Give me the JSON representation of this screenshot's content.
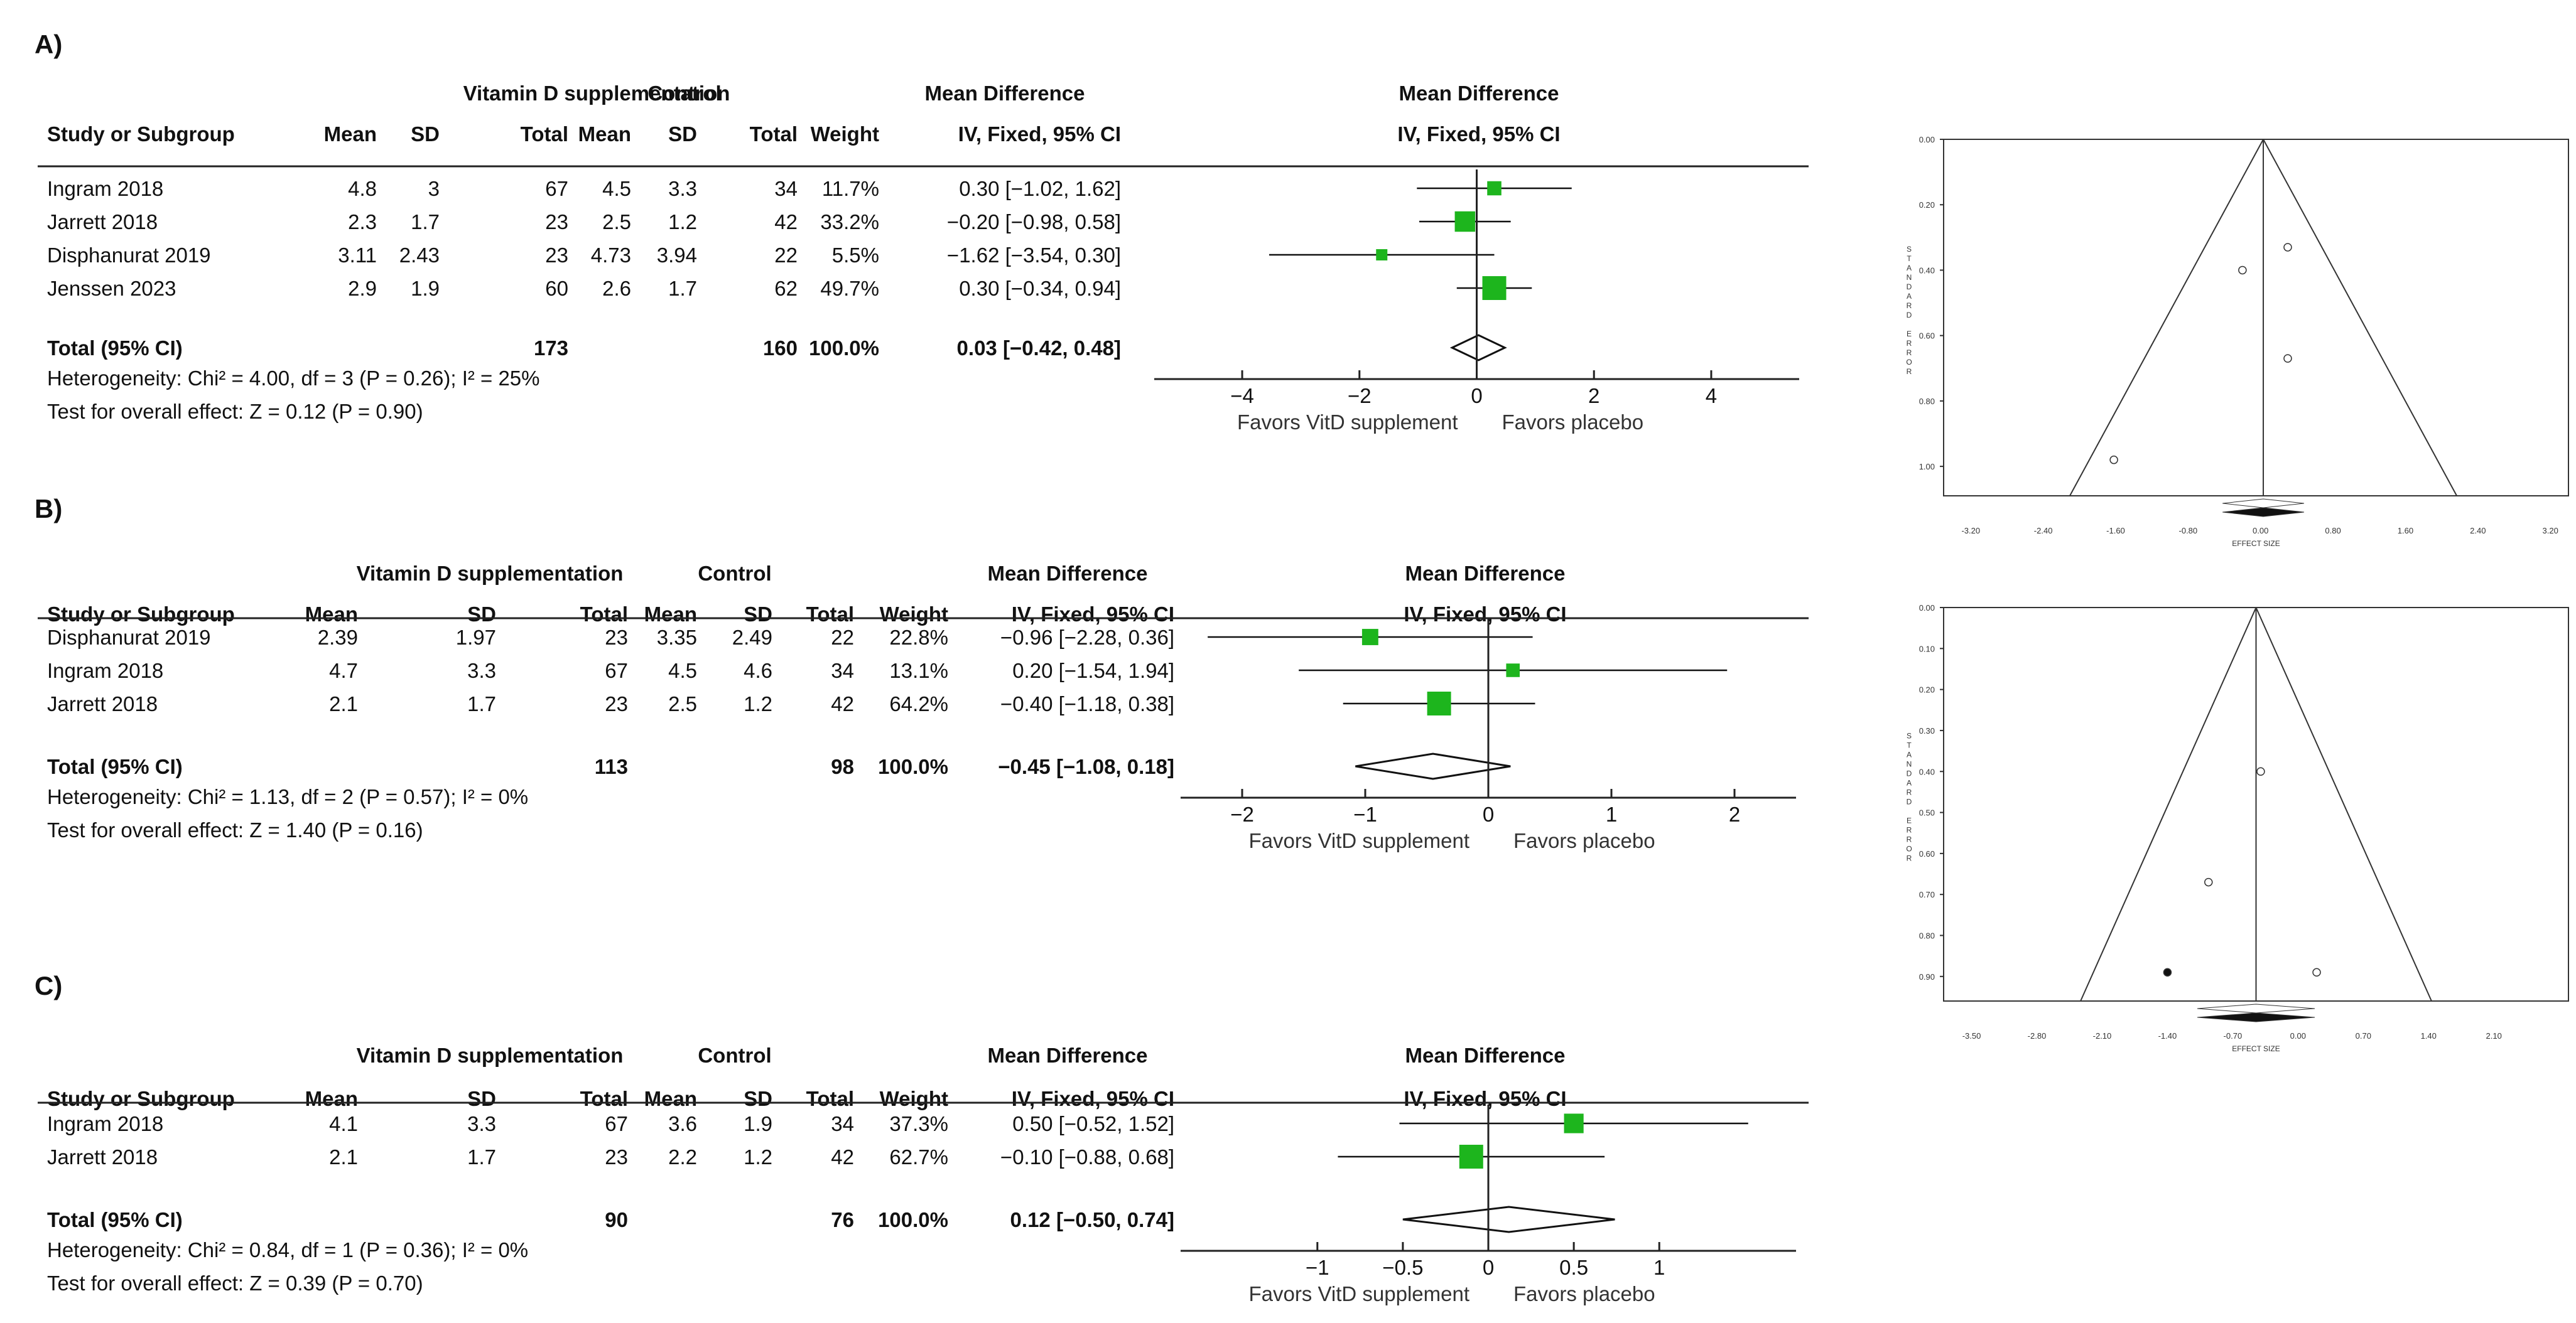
{
  "chart_data": [
    {
      "type": "forest",
      "panel": "A)",
      "group_headers": {
        "treatment": "Vitamin D supplementation",
        "control": "Control",
        "effect": "Mean Difference",
        "plot": "Mean Difference"
      },
      "column_headers": [
        "Study or Subgroup",
        "Mean",
        "SD",
        "Total",
        "Mean",
        "SD",
        "Total",
        "Weight",
        "IV, Fixed, 95% CI",
        "IV, Fixed, 95% CI"
      ],
      "studies": [
        {
          "study": "Ingram 2018",
          "t_mean": "4.8",
          "t_sd": "3",
          "t_total": "67",
          "c_mean": "4.5",
          "c_sd": "3.3",
          "c_total": "34",
          "weight": "11.7%",
          "ci_text": "0.30 [-1.02, 1.62]",
          "md": 0.3,
          "lo": -1.02,
          "hi": 1.62,
          "w": 11.7
        },
        {
          "study": "Jarrett 2018",
          "t_mean": "2.3",
          "t_sd": "1.7",
          "t_total": "23",
          "c_mean": "2.5",
          "c_sd": "1.2",
          "c_total": "42",
          "weight": "33.2%",
          "ci_text": "-0.20 [-0.98, 0.58]",
          "md": -0.2,
          "lo": -0.98,
          "hi": 0.58,
          "w": 33.2
        },
        {
          "study": "Disphanurat 2019",
          "t_mean": "3.11",
          "t_sd": "2.43",
          "t_total": "23",
          "c_mean": "4.73",
          "c_sd": "3.94",
          "c_total": "22",
          "weight": "5.5%",
          "ci_text": "-1.62 [-3.54, 0.30]",
          "md": -1.62,
          "lo": -3.54,
          "hi": 0.3,
          "w": 5.5
        },
        {
          "study": "Jenssen 2023",
          "t_mean": "2.9",
          "t_sd": "1.9",
          "t_total": "60",
          "c_mean": "2.6",
          "c_sd": "1.7",
          "c_total": "62",
          "weight": "49.7%",
          "ci_text": "0.30 [-0.34, 0.94]",
          "md": 0.3,
          "lo": -0.34,
          "hi": 0.94,
          "w": 49.7
        }
      ],
      "total": {
        "label": "Total (95% CI)",
        "t_total": "173",
        "c_total": "160",
        "weight": "100.0%",
        "ci_text": "0.03 [-0.42, 0.48]",
        "md": 0.03,
        "lo": -0.42,
        "hi": 0.48
      },
      "heterogeneity": "Heterogeneity: Chi² = 4.00, df = 3 (P = 0.26); I² = 25%",
      "overall_effect": "Test for overall effect: Z = 0.12 (P = 0.90)",
      "x_ticks": [
        -4,
        -2,
        0,
        2,
        4
      ],
      "x_tick_labels": [
        "-4",
        "-2",
        "0",
        "2",
        "4"
      ],
      "xlim": [
        -5.5,
        5.5
      ],
      "favors_left": "Favors VitD supplement",
      "favors_right": "Favors placebo"
    },
    {
      "type": "forest",
      "panel": "B)",
      "group_headers": {
        "treatment": "Vitamin D supplementation",
        "control": "Control",
        "effect": "Mean Difference",
        "plot": "Mean Difference"
      },
      "column_headers": [
        "Study or Subgroup",
        "Mean",
        "SD",
        "Total",
        "Mean",
        "SD",
        "Total",
        "Weight",
        "IV, Fixed, 95% CI",
        "IV, Fixed, 95% CI"
      ],
      "studies": [
        {
          "study": "Disphanurat 2019",
          "t_mean": "2.39",
          "t_sd": "1.97",
          "t_total": "23",
          "c_mean": "3.35",
          "c_sd": "2.49",
          "c_total": "22",
          "weight": "22.8%",
          "ci_text": "-0.96 [-2.28, 0.36]",
          "md": -0.96,
          "lo": -2.28,
          "hi": 0.36,
          "w": 22.8
        },
        {
          "study": "Ingram 2018",
          "t_mean": "4.7",
          "t_sd": "3.3",
          "t_total": "67",
          "c_mean": "4.5",
          "c_sd": "4.6",
          "c_total": "34",
          "weight": "13.1%",
          "ci_text": "0.20 [-1.54, 1.94]",
          "md": 0.2,
          "lo": -1.54,
          "hi": 1.94,
          "w": 13.1
        },
        {
          "study": "Jarrett 2018",
          "t_mean": "2.1",
          "t_sd": "1.7",
          "t_total": "23",
          "c_mean": "2.5",
          "c_sd": "1.2",
          "c_total": "42",
          "weight": "64.2%",
          "ci_text": "-0.40 [-1.18, 0.38]",
          "md": -0.4,
          "lo": -1.18,
          "hi": 0.38,
          "w": 64.2
        }
      ],
      "total": {
        "label": "Total (95% CI)",
        "t_total": "113",
        "c_total": "98",
        "weight": "100.0%",
        "ci_text": "-0.45 [-1.08, 0.18]",
        "md": -0.45,
        "lo": -1.08,
        "hi": 0.18
      },
      "heterogeneity": "Heterogeneity: Chi² = 1.13, df = 2 (P = 0.57); I² = 0%",
      "overall_effect": "Test for overall effect: Z = 1.40 (P = 0.16)",
      "x_ticks": [
        -2,
        -1,
        0,
        1,
        2
      ],
      "x_tick_labels": [
        "-2",
        "-1",
        "0",
        "1",
        "2"
      ],
      "xlim": [
        -2.5,
        2.5
      ],
      "favors_left": "Favors VitD supplement",
      "favors_right": "Favors placebo"
    },
    {
      "type": "forest",
      "panel": "C)",
      "group_headers": {
        "treatment": "Vitamin D supplementation",
        "control": "Control",
        "effect": "Mean Difference",
        "plot": "Mean Difference"
      },
      "column_headers": [
        "Study or Subgroup",
        "Mean",
        "SD",
        "Total",
        "Mean",
        "SD",
        "Total",
        "Weight",
        "IV, Fixed, 95% CI",
        "IV, Fixed, 95% CI"
      ],
      "studies": [
        {
          "study": "Ingram 2018",
          "t_mean": "4.1",
          "t_sd": "3.3",
          "t_total": "67",
          "c_mean": "3.6",
          "c_sd": "1.9",
          "c_total": "34",
          "weight": "37.3%",
          "ci_text": "0.50 [-0.52, 1.52]",
          "md": 0.5,
          "lo": -0.52,
          "hi": 1.52,
          "w": 37.3
        },
        {
          "study": "Jarrett 2018",
          "t_mean": "2.1",
          "t_sd": "1.7",
          "t_total": "23",
          "c_mean": "2.2",
          "c_sd": "1.2",
          "c_total": "42",
          "weight": "62.7%",
          "ci_text": "-0.10 [-0.88, 0.68]",
          "md": -0.1,
          "lo": -0.88,
          "hi": 0.68,
          "w": 62.7
        }
      ],
      "total": {
        "label": "Total (95% CI)",
        "t_total": "90",
        "c_total": "76",
        "weight": "100.0%",
        "ci_text": "0.12 [-0.50, 0.74]",
        "md": 0.12,
        "lo": -0.5,
        "hi": 0.74
      },
      "heterogeneity": "Heterogeneity: Chi² = 0.84, df = 1 (P = 0.36); I² = 0%",
      "overall_effect": "Test for overall effect: Z = 0.39 (P = 0.70)",
      "x_ticks": [
        -1,
        -0.5,
        0,
        0.5,
        1
      ],
      "x_tick_labels": [
        "-1",
        "-0.5",
        "0",
        "0.5",
        "1"
      ],
      "xlim": [
        -1.8,
        1.8
      ],
      "favors_left": "Favors VitD supplement",
      "favors_right": "Favors placebo"
    },
    {
      "type": "funnel",
      "ylabel": "STANDARD ERROR",
      "xlabel": "EFFECT SIZE",
      "x_ticks": [
        -3.2,
        -2.4,
        -1.6,
        -0.8,
        0,
        0.8,
        1.6,
        2.4,
        3.2
      ],
      "x_tick_labels": [
        "-3.20",
        "-2.40",
        "-1.60",
        "-0.80",
        "0.00",
        "0.80",
        "1.60",
        "2.40",
        "3.20"
      ],
      "y_ticks": [
        0,
        0.2,
        0.4,
        0.6,
        0.8,
        1.0
      ],
      "y_tick_labels": [
        "0.00",
        "0.20",
        "0.40",
        "0.60",
        "0.80",
        "1.00"
      ],
      "xlim": [
        -3.5,
        3.4
      ],
      "ylim": [
        0,
        1.09
      ],
      "pooled": 0.03,
      "points": [
        {
          "x": 0.3,
          "se": 0.33,
          "filled": false
        },
        {
          "x": -0.2,
          "se": 0.4,
          "filled": false
        },
        {
          "x": -1.62,
          "se": 0.98,
          "filled": false
        },
        {
          "x": 0.3,
          "se": 0.67,
          "filled": false
        }
      ],
      "diamonds": [
        {
          "center": 0.03,
          "lo": -0.42,
          "hi": 0.48,
          "filled": false
        },
        {
          "center": 0.03,
          "lo": -0.42,
          "hi": 0.48,
          "filled": true
        }
      ]
    },
    {
      "type": "funnel",
      "ylabel": "STANDARD ERROR",
      "xlabel": "EFFECT SIZE",
      "x_ticks": [
        -3.5,
        -2.8,
        -2.1,
        -1.4,
        -0.7,
        0,
        0.7,
        1.4,
        2.1
      ],
      "x_tick_labels": [
        "-3.50",
        "-2.80",
        "-2.10",
        "-1.40",
        "-0.70",
        "0.00",
        "0.70",
        "1.40",
        "2.10"
      ],
      "y_ticks": [
        0,
        0.1,
        0.2,
        0.3,
        0.4,
        0.5,
        0.6,
        0.7,
        0.8,
        0.9
      ],
      "y_tick_labels": [
        "0.00",
        "0.10",
        "0.20",
        "0.30",
        "0.40",
        "0.50",
        "0.60",
        "0.70",
        "0.80",
        "0.90"
      ],
      "xlim": [
        -3.8,
        2.9
      ],
      "ylim": [
        0,
        0.96
      ],
      "pooled": -0.45,
      "points": [
        {
          "x": -0.4,
          "se": 0.4,
          "filled": false
        },
        {
          "x": -0.96,
          "se": 0.67,
          "filled": false
        },
        {
          "x": 0.2,
          "se": 0.89,
          "filled": false
        },
        {
          "x": -1.4,
          "se": 0.89,
          "filled": true
        }
      ],
      "diamonds": [
        {
          "center": -0.45,
          "lo": -1.08,
          "hi": 0.18,
          "filled": false
        },
        {
          "center": -0.45,
          "lo": -1.08,
          "hi": 0.18,
          "filled": true
        }
      ]
    }
  ]
}
